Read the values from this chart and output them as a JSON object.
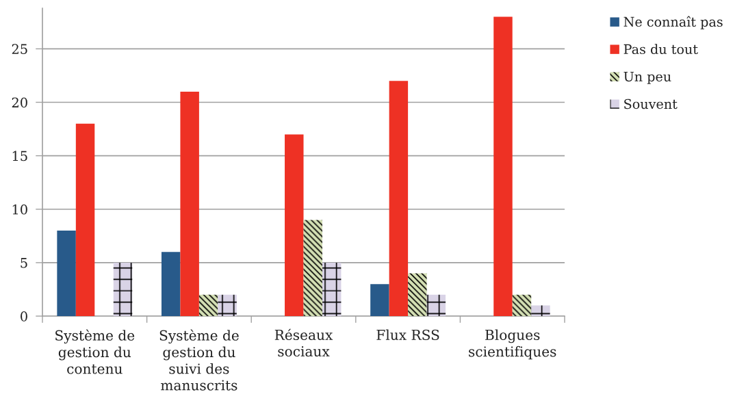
{
  "chart_data": {
    "type": "bar",
    "categories": [
      "Système de\ngestion du\ncontenu",
      "Système de\ngestion du\nsuivi des\nmanuscrits",
      "Réseaux\nsociaux",
      "Flux RSS",
      "Blogues\nscientifiques"
    ],
    "series": [
      {
        "name": "Ne connaît pas",
        "color": "#285a8a",
        "values": [
          8,
          6,
          0,
          3,
          0
        ]
      },
      {
        "name": "Pas du tout",
        "color": "#ee3124",
        "values": [
          18,
          21,
          17,
          22,
          28
        ]
      },
      {
        "name": "Un peu",
        "color": "#d4e0b4",
        "values": [
          0,
          2,
          9,
          4,
          2
        ]
      },
      {
        "name": "Souvent",
        "color": "#d9d3e6",
        "values": [
          5,
          2,
          5,
          2,
          1
        ]
      }
    ],
    "ylim": [
      0,
      28.8
    ],
    "yticks": [
      0,
      5,
      10,
      15,
      20,
      25
    ],
    "grid": "y",
    "legend": "right"
  }
}
